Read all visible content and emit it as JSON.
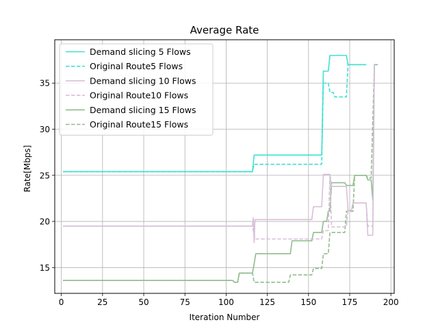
{
  "chart_data": {
    "type": "line",
    "title": "Average Rate",
    "xlabel": "Iteration Number",
    "ylabel": "Rate[Mbps]",
    "xlim": [
      -4,
      202
    ],
    "ylim": [
      12.2,
      39.7
    ],
    "xticks": [
      0,
      25,
      50,
      75,
      100,
      125,
      150,
      175,
      200
    ],
    "yticks": [
      15,
      20,
      25,
      30,
      35
    ],
    "grid": true,
    "legend_position": "top-left",
    "series": [
      {
        "name": "Demand slicing 5 Flows",
        "color": "#40e0d0",
        "dash": "solid",
        "x": [
          1,
          116,
          117,
          158,
          159,
          162,
          163,
          173,
          174,
          185
        ],
        "y": [
          25.4,
          25.4,
          27.2,
          27.2,
          36.3,
          36.3,
          38.0,
          38.0,
          37.0,
          37.0
        ]
      },
      {
        "name": "Original Route5 Flows",
        "color": "#40e0d0",
        "dash": "dashed",
        "x": [
          1,
          116,
          117,
          158,
          159,
          162,
          163,
          165,
          166,
          173,
          174,
          185
        ],
        "y": [
          25.4,
          25.4,
          26.2,
          26.2,
          35.0,
          35.0,
          34.0,
          34.0,
          33.5,
          33.5,
          37.0,
          37.0
        ]
      },
      {
        "name": "Demand slicing 10 Flows",
        "color": "#d8bfd8",
        "dash": "solid",
        "x": [
          1,
          116,
          116.5,
          117,
          117.5,
          118,
          152,
          153,
          158,
          159,
          163,
          164,
          173,
          174,
          176,
          177,
          185,
          186,
          189,
          190
        ],
        "y": [
          19.5,
          19.5,
          20.4,
          17.7,
          20.2,
          20.2,
          20.2,
          21.6,
          21.6,
          25.1,
          25.1,
          23.8,
          23.8,
          21.2,
          21.2,
          22.0,
          22.0,
          18.5,
          18.5,
          37.0
        ]
      },
      {
        "name": "Original Route10 Flows",
        "color": "#d8bfd8",
        "dash": "dashed",
        "x": [
          1,
          116,
          117,
          118,
          158,
          159,
          162,
          163,
          164,
          173,
          174,
          176,
          177,
          185,
          186,
          189,
          190
        ],
        "y": [
          19.5,
          19.5,
          18.5,
          18.1,
          18.1,
          19.0,
          19.0,
          25.0,
          19.4,
          19.4,
          21.2,
          21.2,
          22.0,
          22.0,
          19.5,
          19.5,
          37.0
        ]
      },
      {
        "name": "Demand slicing 15 Flows",
        "color": "#8fbc8f",
        "dash": "solid",
        "x": [
          1,
          104,
          105,
          107,
          108,
          116,
          117,
          118,
          139,
          140,
          152,
          153,
          158,
          159,
          161,
          162,
          163,
          164,
          172,
          173,
          177,
          178,
          185,
          186,
          188,
          189,
          190,
          192
        ],
        "y": [
          13.6,
          13.6,
          13.4,
          13.4,
          14.4,
          14.4,
          15.4,
          16.5,
          16.5,
          17.9,
          17.9,
          18.8,
          18.8,
          20.0,
          20.0,
          21.1,
          21.1,
          24.2,
          24.2,
          23.9,
          23.9,
          25.0,
          25.0,
          24.5,
          24.5,
          22.3,
          37.0,
          37.0
        ]
      },
      {
        "name": "Original Route15 Flows",
        "color": "#8fbc8f",
        "dash": "dashed",
        "x": [
          1,
          104,
          105,
          107,
          108,
          116,
          117,
          138,
          139,
          152,
          153,
          158,
          159,
          162,
          163,
          164,
          172,
          173,
          177,
          178,
          185,
          186,
          188,
          190,
          192
        ],
        "y": [
          13.6,
          13.6,
          13.4,
          13.4,
          14.4,
          14.4,
          13.4,
          13.4,
          14.2,
          14.2,
          14.9,
          14.9,
          16.5,
          16.5,
          18.8,
          18.8,
          18.8,
          21.1,
          21.1,
          25.0,
          25.0,
          24.7,
          24.7,
          37.0,
          37.0
        ]
      }
    ]
  }
}
